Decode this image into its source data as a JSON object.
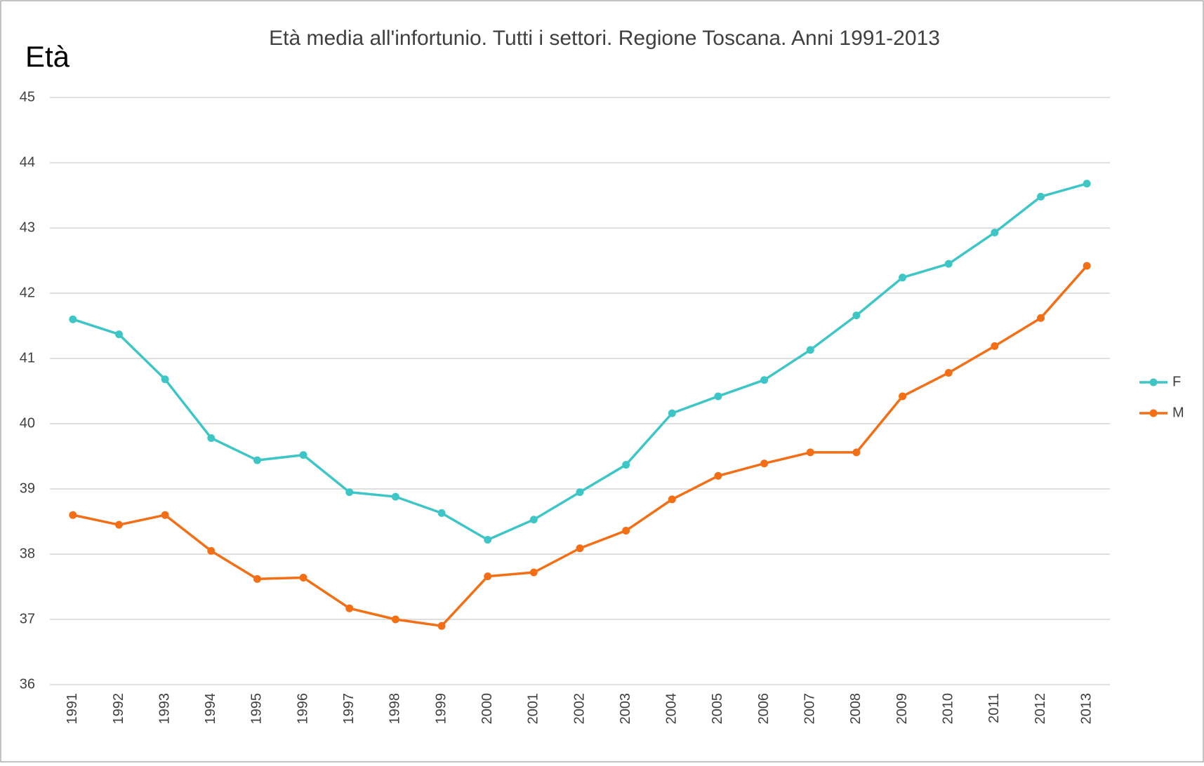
{
  "chart_data": {
    "type": "line",
    "title": "Età media all'infortunio. Tutti i settori. Regione Toscana. Anni 1991-2013",
    "y_label": "Età",
    "categories": [
      "1991",
      "1992",
      "1993",
      "1994",
      "1995",
      "1996",
      "1997",
      "1998",
      "1999",
      "2000",
      "2001",
      "2002",
      "2003",
      "2004",
      "2005",
      "2006",
      "2007",
      "2008",
      "2009",
      "2010",
      "2011",
      "2012",
      "2013"
    ],
    "series": [
      {
        "name": "F",
        "color": "#3ec6c6",
        "values": [
          41.6,
          41.37,
          40.68,
          39.78,
          39.44,
          39.52,
          38.95,
          38.88,
          38.63,
          38.22,
          38.53,
          38.95,
          39.37,
          40.16,
          40.42,
          40.67,
          41.13,
          41.66,
          42.24,
          42.45,
          42.93,
          43.48,
          43.68
        ]
      },
      {
        "name": "M",
        "color": "#f36f16",
        "values": [
          38.6,
          38.45,
          38.6,
          38.05,
          37.62,
          37.64,
          37.17,
          37.0,
          36.9,
          37.66,
          37.72,
          38.09,
          38.36,
          38.84,
          39.2,
          39.39,
          39.56,
          39.56,
          40.42,
          40.78,
          41.19,
          41.62,
          42.42
        ]
      }
    ],
    "ylim": [
      36,
      45
    ],
    "yticks": [
      36,
      37,
      38,
      39,
      40,
      41,
      42,
      43,
      44,
      45
    ],
    "grid": true,
    "legend": "right"
  }
}
